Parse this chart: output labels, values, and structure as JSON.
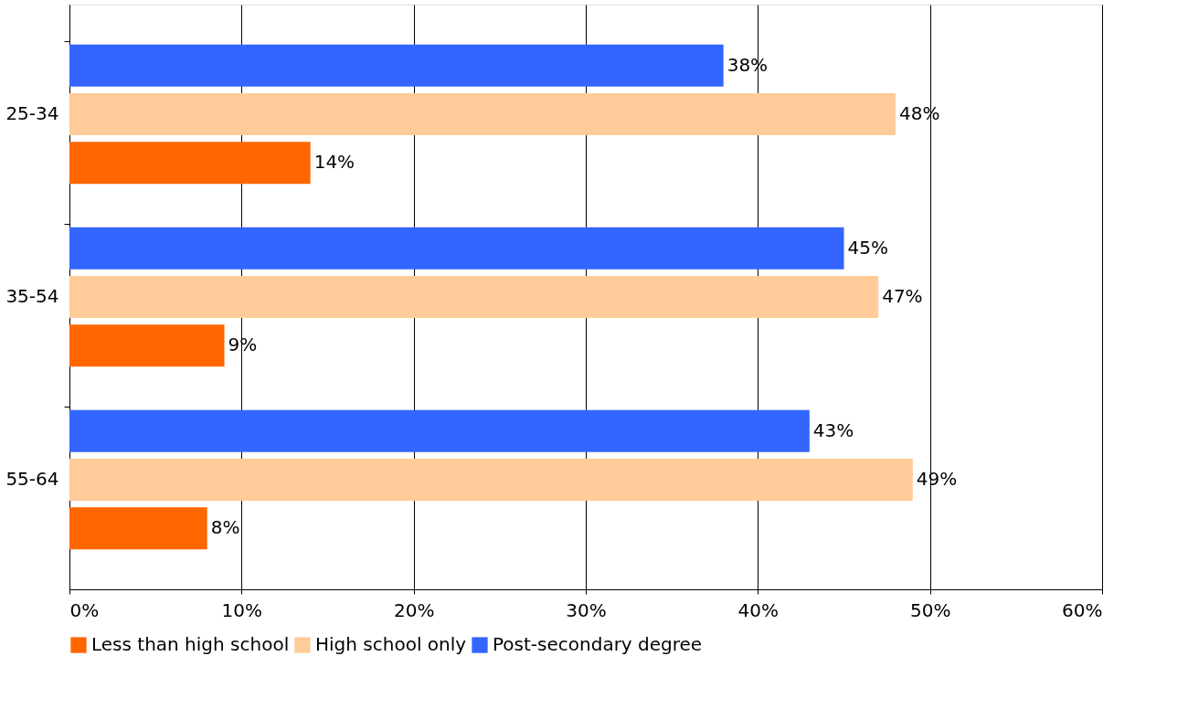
{
  "chart_data": {
    "type": "bar",
    "orientation": "horizontal",
    "categories": [
      "25-34",
      "35-54",
      "55-64"
    ],
    "series": [
      {
        "name": "Less than high school",
        "color": "#ff6600",
        "values": [
          14,
          9,
          8
        ],
        "value_labels": [
          "14%",
          "9%",
          "8%"
        ]
      },
      {
        "name": "High school only",
        "color": "#ffcc99",
        "values": [
          48,
          47,
          49
        ],
        "value_labels": [
          "48%",
          "47%",
          "49%"
        ]
      },
      {
        "name": "Post-secondary degree",
        "color": "#3366ff",
        "values": [
          38,
          45,
          43
        ],
        "value_labels": [
          "38%",
          "45%",
          "43%"
        ]
      }
    ],
    "xlim": [
      0,
      60
    ],
    "xticks": [
      {
        "value": 0,
        "label": "0%"
      },
      {
        "value": 10,
        "label": "10%"
      },
      {
        "value": 20,
        "label": "20%"
      },
      {
        "value": 30,
        "label": "30%"
      },
      {
        "value": 40,
        "label": "40%"
      },
      {
        "value": 50,
        "label": "50%"
      },
      {
        "value": 60,
        "label": "60%"
      }
    ],
    "grid": "x",
    "legend": "bottom"
  }
}
